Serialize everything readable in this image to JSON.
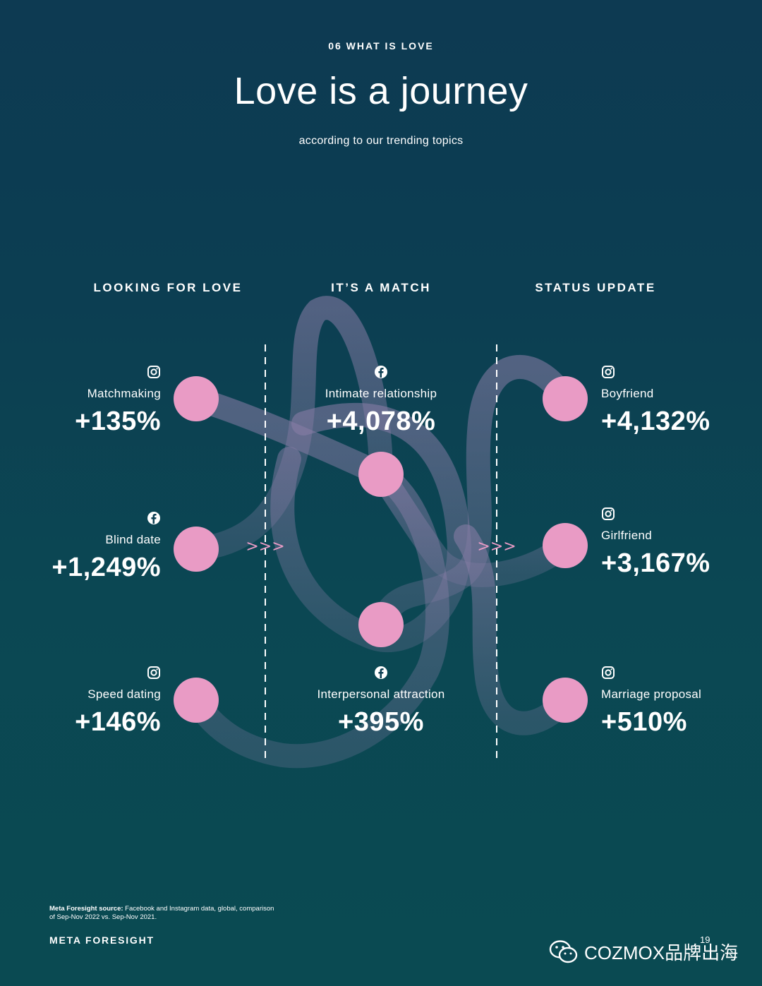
{
  "header": {
    "eyebrow": "06 WHAT IS LOVE",
    "title": "Love is a journey",
    "subtitle": "according to our trending topics"
  },
  "columns": [
    {
      "heading": "LOOKING FOR LOVE"
    },
    {
      "heading": "IT’S A MATCH"
    },
    {
      "heading": "STATUS UPDATE"
    }
  ],
  "topics": [
    {
      "id": "matchmaking",
      "label": "Matchmaking",
      "value": "+135%",
      "platform": "instagram-icon",
      "change_percent": 135
    },
    {
      "id": "blind-date",
      "label": "Blind date",
      "value": "+1,249%",
      "platform": "facebook-icon",
      "change_percent": 1249
    },
    {
      "id": "speed-dating",
      "label": "Speed dating",
      "value": "+146%",
      "platform": "instagram-icon",
      "change_percent": 146
    },
    {
      "id": "intimate-relationship",
      "label": "Intimate relationship",
      "value": "+4,078%",
      "platform": "facebook-icon",
      "change_percent": 4078
    },
    {
      "id": "interpersonal-attraction",
      "label": "Interpersonal attraction",
      "value": "+395%",
      "platform": "facebook-icon",
      "change_percent": 395
    },
    {
      "id": "boyfriend",
      "label": "Boyfriend",
      "value": "+4,132%",
      "platform": "instagram-icon",
      "change_percent": 4132
    },
    {
      "id": "girlfriend",
      "label": "Girlfriend",
      "value": "+3,167%",
      "platform": "instagram-icon",
      "change_percent": 3167
    },
    {
      "id": "marriage-proposal",
      "label": "Marriage proposal",
      "value": "+510%",
      "platform": "instagram-icon",
      "change_percent": 510
    }
  ],
  "arrows": ">>>",
  "footer": {
    "source_label": "Meta Foresight source:",
    "source_text": " Facebook and Instagram data, global, comparison of Sep-Nov  2022 vs. Sep-Nov 2021.",
    "brand": "META FORESIGHT",
    "page": "19",
    "watermark": "COZMOX品牌出海"
  },
  "colors": {
    "dot": "#e99bc5",
    "ribbon": "#8b7ea8",
    "background": "#0c3e52",
    "arrow": "#e99bc5"
  }
}
